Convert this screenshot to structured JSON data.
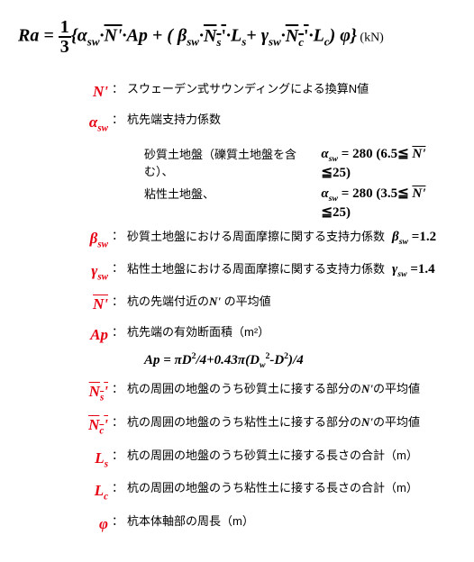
{
  "formula": {
    "lhs": "Ra",
    "eq": " = ",
    "frac_num": "1",
    "frac_den": "3",
    "body_open": "{",
    "t1": "α",
    "t1s": "sw",
    "dot": "·",
    "Nbar": "N'",
    "Ap": "Ap",
    "plus": " + ",
    "paren_o": "( ",
    "beta": "β",
    "Ns": "N",
    "Ns_s": "s",
    "Ls": "L",
    "Ls_s": "s",
    "plus2": "+ ",
    "gam": "γ",
    "Nc": "N",
    "Nc_s": "c",
    "Lc": "L",
    "Lc_s": "c",
    "paren_c": ") ",
    "phi": "φ",
    "body_close": "}",
    "unit": " (kN)"
  },
  "defs": {
    "Nprime": {
      "sym": "N'",
      "txt": "スウェーデン式サウンディングによる換算N値"
    },
    "alpha": {
      "sym": "α",
      "sub": "sw",
      "txt": "杭先端支持力係数"
    },
    "alpha_sand_lbl": "砂質土地盤（礫質土地盤を含む）、",
    "alpha_sand_val_a": "α",
    "alpha_sand_val_s": "sw",
    "alpha_sand_val_b": " = 280 (6.5≦ ",
    "alpha_sand_val_c": "N'",
    "alpha_sand_val_d": " ≦25)",
    "alpha_clay_lbl": "粘性土地盤、",
    "alpha_clay_val_b": " = 280 (3.5≦ ",
    "beta": {
      "sym": "β",
      "sub": "sw",
      "txt": "砂質土地盤における周面摩擦に関する支持力係数",
      "val_a": "β",
      "val_s": "sw",
      "val_b": " =1.2"
    },
    "gamma": {
      "sym": "γ",
      "sub": "sw",
      "txt": "粘性土地盤における周面摩擦に関する支持力係数",
      "val_a": "γ",
      "val_s": "sw",
      "val_b": " =1.4"
    },
    "Nbar": {
      "sym": "N'",
      "txt_a": "杭の先端付近の",
      "txt_b": "N'",
      "txt_c": " の平均値"
    },
    "Ap": {
      "sym": "Ap",
      "txt": "杭先端の有効断面積（m²）"
    },
    "Ap_formula_a": "Ap  = πD",
    "Ap_formula_b": "/4+0.43π",
    "Ap_formula_c": "(",
    "Ap_formula_d": "D",
    "Ap_formula_ds": "w",
    "Ap_formula_e": "-D",
    "Ap_formula_f": ")",
    "Ap_formula_g": "/4",
    "Ns": {
      "sym": "N",
      "ssub": "s",
      "txt_a": "杭の周囲の地盤のうち砂質土に接する部分の",
      "txt_b": "N'",
      "txt_c": "の平均値"
    },
    "Nc": {
      "sym": "N",
      "ssub": "c",
      "txt_a": "杭の周囲の地盤のうち粘性土に接する部分の",
      "txt_b": "N'",
      "txt_c": "の平均値"
    },
    "Ls": {
      "sym": "L",
      "ssub": "s",
      "txt": "杭の周囲の地盤のうち砂質土に接する長さの合計（m）"
    },
    "Lc": {
      "sym": "L",
      "ssub": "c",
      "txt": "杭の周囲の地盤のうち粘性土に接する長さの合計（m）"
    },
    "phi": {
      "sym": "φ",
      "txt": "杭本体軸部の周長（m）"
    }
  }
}
